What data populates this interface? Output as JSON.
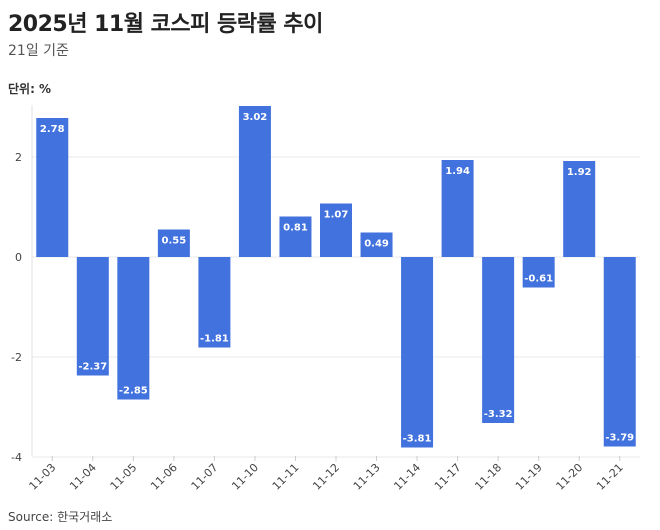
{
  "title": "2025년 11월 코스피 등락률 추이",
  "subtitle": "21일 기준",
  "unit_label": "단위: %",
  "source": "Source: 한국거래소",
  "colors": {
    "bar": "#4272dd",
    "grid": "#e8e8e8",
    "text": "#333333"
  },
  "chart_data": {
    "type": "bar",
    "categories": [
      "11-03",
      "11-04",
      "11-05",
      "11-06",
      "11-07",
      "11-10",
      "11-11",
      "11-12",
      "11-13",
      "11-14",
      "11-17",
      "11-18",
      "11-19",
      "11-20",
      "11-21"
    ],
    "values": [
      2.78,
      -2.37,
      -2.85,
      0.55,
      -1.81,
      3.02,
      0.81,
      1.07,
      0.49,
      -3.81,
      1.94,
      -3.32,
      -0.61,
      1.92,
      -3.79
    ],
    "data_labels": [
      "2.78",
      "-2.37",
      "-2.85",
      "0.55",
      "-1.81",
      "3.02",
      "0.81",
      "1.07",
      "0.49",
      "-3.81",
      "1.94",
      "-3.32",
      "-0.61",
      "1.92",
      "-3.79"
    ],
    "yticks": [
      2,
      0,
      -2,
      -4
    ],
    "ytick_labels": [
      "2",
      "0",
      "-2",
      "-4"
    ],
    "ylim": [
      -4,
      3
    ],
    "grid": true,
    "xlabel": "",
    "ylabel": ""
  }
}
